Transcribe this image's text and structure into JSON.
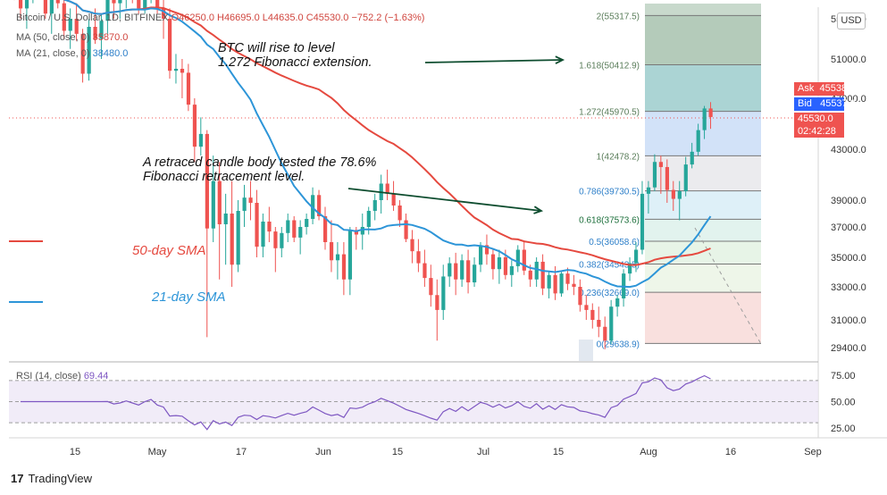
{
  "header": {
    "symbol": "Bitcoin / U.S. Dollar, 1D, BITFINEX",
    "ohlc": "O46250.0 H46695.0 L44635.0 C45530.0 −752.2 (−1.63%)",
    "ma50": "MA (50, close, 0)",
    "ma50_val": "35870.0",
    "ma21": "MA (21, close, 0)",
    "ma21_val": "38480.0"
  },
  "currency": "USD",
  "annotations": {
    "rise_line1": "BTC will rise to level",
    "rise_line2": "1.272 Fibonacci extension.",
    "retrace_line1": "A retraced candle body tested the 78.6%",
    "retrace_line2": "Fibonacci retracement level.",
    "sma50": "50-day SMA",
    "sma21": "21-day SMA"
  },
  "price_tags": {
    "ask": "Ask",
    "ask_price": "45538.0",
    "bid": "Bid",
    "bid_price": "45537.0",
    "last_price": "45530.0",
    "countdown": "02:42:28"
  },
  "brand": "TradingView",
  "colors": {
    "up": "#26a69a",
    "down": "#ef5350",
    "sma50": "#e5493f",
    "sma21": "#2d95d8",
    "rsi": "#7e57c2",
    "ask": "#ef5350",
    "bid": "#2962ff"
  },
  "chart_data": {
    "type": "candlestick",
    "price_axis": {
      "ticks": [
        55000,
        51000,
        47000,
        43000,
        39000,
        37000,
        35000,
        33000,
        31000,
        29400
      ],
      "labels": [
        "55000.0",
        "51000.0",
        "47000.0",
        "43000.0",
        "39000.0",
        "37000.0",
        "35000.0",
        "33000.0",
        "31000.0",
        "29400.0"
      ]
    },
    "time_axis": {
      "labels": [
        "15",
        "May",
        "17",
        "Jun",
        "15",
        "Jul",
        "15",
        "Aug",
        "16",
        "Sep"
      ]
    },
    "fibonacci": [
      {
        "label": "2(55317.5)",
        "level": 55317.5
      },
      {
        "label": "1.618(50412.9)",
        "level": 50412.9
      },
      {
        "label": "1.272(45970.5)",
        "level": 45970.5
      },
      {
        "label": "1(42478.2)",
        "level": 42478.2
      },
      {
        "label": "0.786(39730.5)",
        "level": 39730.5
      },
      {
        "label": "0.618(37573.6)",
        "level": 37573.6
      },
      {
        "label": "0.5(36058.6)",
        "level": 36058.6
      },
      {
        "label": "0.382(34543.5)",
        "level": 34543.5
      },
      {
        "label": "0.236(32669.0)",
        "level": 32669.0
      },
      {
        "label": "0(29638.9)",
        "level": 29638.9
      }
    ],
    "candles": [
      {
        "o": 59500,
        "h": 60400,
        "l": 56800,
        "c": 58000
      },
      {
        "o": 58000,
        "h": 59000,
        "l": 55000,
        "c": 56000
      },
      {
        "o": 56000,
        "h": 57500,
        "l": 54000,
        "c": 57000
      },
      {
        "o": 57000,
        "h": 60000,
        "l": 56500,
        "c": 59500
      },
      {
        "o": 59500,
        "h": 61000,
        "l": 57000,
        "c": 58200
      },
      {
        "o": 58200,
        "h": 59500,
        "l": 55000,
        "c": 55500
      },
      {
        "o": 55500,
        "h": 58000,
        "l": 53500,
        "c": 57200
      },
      {
        "o": 57200,
        "h": 59500,
        "l": 56000,
        "c": 56500
      },
      {
        "o": 56500,
        "h": 57000,
        "l": 53000,
        "c": 53800
      },
      {
        "o": 53800,
        "h": 56000,
        "l": 52000,
        "c": 55000
      },
      {
        "o": 55000,
        "h": 56500,
        "l": 52800,
        "c": 53500
      },
      {
        "o": 53500,
        "h": 54000,
        "l": 48600,
        "c": 49500
      },
      {
        "o": 49500,
        "h": 55000,
        "l": 48800,
        "c": 54200
      },
      {
        "o": 54200,
        "h": 56000,
        "l": 52500,
        "c": 53000
      },
      {
        "o": 53000,
        "h": 55500,
        "l": 51000,
        "c": 54800
      },
      {
        "o": 54800,
        "h": 58000,
        "l": 53500,
        "c": 57800
      },
      {
        "o": 57800,
        "h": 58500,
        "l": 55000,
        "c": 56500
      },
      {
        "o": 56500,
        "h": 57500,
        "l": 55000,
        "c": 57000
      },
      {
        "o": 57000,
        "h": 59000,
        "l": 56000,
        "c": 58000
      },
      {
        "o": 58000,
        "h": 59000,
        "l": 56500,
        "c": 57000
      },
      {
        "o": 57000,
        "h": 58000,
        "l": 55500,
        "c": 56000
      },
      {
        "o": 56000,
        "h": 58500,
        "l": 55500,
        "c": 57500
      },
      {
        "o": 57500,
        "h": 59000,
        "l": 56500,
        "c": 58500
      },
      {
        "o": 58500,
        "h": 59500,
        "l": 55500,
        "c": 56000
      },
      {
        "o": 56000,
        "h": 57000,
        "l": 53000,
        "c": 55000
      },
      {
        "o": 55000,
        "h": 56000,
        "l": 49000,
        "c": 49800
      },
      {
        "o": 49800,
        "h": 51500,
        "l": 48500,
        "c": 50000
      },
      {
        "o": 50000,
        "h": 51000,
        "l": 47000,
        "c": 49600
      },
      {
        "o": 49600,
        "h": 50500,
        "l": 46000,
        "c": 46500
      },
      {
        "o": 46500,
        "h": 47000,
        "l": 42000,
        "c": 43200
      },
      {
        "o": 43200,
        "h": 45500,
        "l": 42500,
        "c": 44200
      },
      {
        "o": 44200,
        "h": 44500,
        "l": 30000,
        "c": 36900
      },
      {
        "o": 36900,
        "h": 42500,
        "l": 36000,
        "c": 40500
      },
      {
        "o": 40500,
        "h": 42000,
        "l": 33500,
        "c": 37200
      },
      {
        "o": 37200,
        "h": 39500,
        "l": 34500,
        "c": 38000
      },
      {
        "o": 38000,
        "h": 40500,
        "l": 33000,
        "c": 34500
      },
      {
        "o": 34500,
        "h": 39000,
        "l": 34000,
        "c": 38200
      },
      {
        "o": 38200,
        "h": 40200,
        "l": 37000,
        "c": 39200
      },
      {
        "o": 39200,
        "h": 40500,
        "l": 37500,
        "c": 38800
      },
      {
        "o": 38800,
        "h": 39800,
        "l": 35000,
        "c": 35700
      },
      {
        "o": 35700,
        "h": 38000,
        "l": 35000,
        "c": 37400
      },
      {
        "o": 37400,
        "h": 38500,
        "l": 36000,
        "c": 36700
      },
      {
        "o": 36700,
        "h": 37000,
        "l": 34000,
        "c": 35600
      },
      {
        "o": 35600,
        "h": 37000,
        "l": 35000,
        "c": 36600
      },
      {
        "o": 36600,
        "h": 38000,
        "l": 36000,
        "c": 37500
      },
      {
        "o": 37500,
        "h": 37800,
        "l": 36000,
        "c": 36300
      },
      {
        "o": 36300,
        "h": 37500,
        "l": 35200,
        "c": 37000
      },
      {
        "o": 37000,
        "h": 38000,
        "l": 36500,
        "c": 37600
      },
      {
        "o": 37600,
        "h": 40000,
        "l": 37200,
        "c": 39400
      },
      {
        "o": 39400,
        "h": 39800,
        "l": 37500,
        "c": 37800
      },
      {
        "o": 37800,
        "h": 38500,
        "l": 35500,
        "c": 36000
      },
      {
        "o": 36000,
        "h": 37500,
        "l": 34000,
        "c": 34800
      },
      {
        "o": 34800,
        "h": 36000,
        "l": 33500,
        "c": 35200
      },
      {
        "o": 35200,
        "h": 36000,
        "l": 32500,
        "c": 33500
      },
      {
        "o": 33500,
        "h": 37000,
        "l": 32500,
        "c": 36800
      },
      {
        "o": 36800,
        "h": 37000,
        "l": 35500,
        "c": 36500
      },
      {
        "o": 36500,
        "h": 38000,
        "l": 35500,
        "c": 37000
      },
      {
        "o": 37000,
        "h": 38500,
        "l": 36500,
        "c": 38200
      },
      {
        "o": 38200,
        "h": 39500,
        "l": 37500,
        "c": 39000
      },
      {
        "o": 39000,
        "h": 41000,
        "l": 38000,
        "c": 40300
      },
      {
        "o": 40300,
        "h": 41400,
        "l": 39000,
        "c": 39500
      },
      {
        "o": 39500,
        "h": 40500,
        "l": 38200,
        "c": 38600
      },
      {
        "o": 38600,
        "h": 39000,
        "l": 37000,
        "c": 37500
      },
      {
        "o": 37500,
        "h": 38000,
        "l": 36000,
        "c": 36200
      },
      {
        "o": 36200,
        "h": 36800,
        "l": 34600,
        "c": 35400
      },
      {
        "o": 35400,
        "h": 36200,
        "l": 34000,
        "c": 34600
      },
      {
        "o": 34600,
        "h": 35500,
        "l": 33000,
        "c": 33600
      },
      {
        "o": 33600,
        "h": 34500,
        "l": 31800,
        "c": 32500
      },
      {
        "o": 32500,
        "h": 33500,
        "l": 29800,
        "c": 31600
      },
      {
        "o": 31600,
        "h": 34500,
        "l": 31000,
        "c": 33700
      },
      {
        "o": 33700,
        "h": 35000,
        "l": 33000,
        "c": 34600
      },
      {
        "o": 34600,
        "h": 35300,
        "l": 32500,
        "c": 33500
      },
      {
        "o": 33500,
        "h": 35200,
        "l": 33000,
        "c": 34800
      },
      {
        "o": 34800,
        "h": 35500,
        "l": 32600,
        "c": 33300
      },
      {
        "o": 33300,
        "h": 35000,
        "l": 33000,
        "c": 34500
      },
      {
        "o": 34500,
        "h": 36000,
        "l": 34000,
        "c": 35800
      },
      {
        "o": 35800,
        "h": 36500,
        "l": 34500,
        "c": 35200
      },
      {
        "o": 35200,
        "h": 35600,
        "l": 33500,
        "c": 34200
      },
      {
        "o": 34200,
        "h": 35500,
        "l": 33200,
        "c": 35000
      },
      {
        "o": 35000,
        "h": 35500,
        "l": 33500,
        "c": 33800
      },
      {
        "o": 33800,
        "h": 34800,
        "l": 33000,
        "c": 34400
      },
      {
        "o": 34400,
        "h": 35800,
        "l": 34000,
        "c": 35500
      },
      {
        "o": 35500,
        "h": 36000,
        "l": 33800,
        "c": 34100
      },
      {
        "o": 34100,
        "h": 34500,
        "l": 33000,
        "c": 33500
      },
      {
        "o": 33500,
        "h": 35000,
        "l": 33000,
        "c": 34700
      },
      {
        "o": 34700,
        "h": 35200,
        "l": 32500,
        "c": 32900
      },
      {
        "o": 32900,
        "h": 34000,
        "l": 32300,
        "c": 33800
      },
      {
        "o": 33800,
        "h": 34400,
        "l": 32200,
        "c": 32600
      },
      {
        "o": 32600,
        "h": 34000,
        "l": 32400,
        "c": 33900
      },
      {
        "o": 33900,
        "h": 34300,
        "l": 32800,
        "c": 33200
      },
      {
        "o": 33200,
        "h": 33800,
        "l": 32500,
        "c": 33000
      },
      {
        "o": 33000,
        "h": 33500,
        "l": 31500,
        "c": 31900
      },
      {
        "o": 31900,
        "h": 32500,
        "l": 31000,
        "c": 31600
      },
      {
        "o": 31600,
        "h": 32000,
        "l": 30500,
        "c": 31000
      },
      {
        "o": 31000,
        "h": 31800,
        "l": 30000,
        "c": 30600
      },
      {
        "o": 30600,
        "h": 31200,
        "l": 29300,
        "c": 29800
      },
      {
        "o": 29800,
        "h": 32200,
        "l": 29600,
        "c": 31800
      },
      {
        "o": 31800,
        "h": 32500,
        "l": 31200,
        "c": 32300
      },
      {
        "o": 32300,
        "h": 34200,
        "l": 31800,
        "c": 33900
      },
      {
        "o": 33900,
        "h": 35000,
        "l": 33400,
        "c": 34600
      },
      {
        "o": 34600,
        "h": 36000,
        "l": 34000,
        "c": 35500
      },
      {
        "o": 35500,
        "h": 40500,
        "l": 35200,
        "c": 39500
      },
      {
        "o": 39500,
        "h": 40500,
        "l": 38000,
        "c": 40000
      },
      {
        "o": 40000,
        "h": 42600,
        "l": 39700,
        "c": 42000
      },
      {
        "o": 42000,
        "h": 42500,
        "l": 39500,
        "c": 41600
      },
      {
        "o": 41600,
        "h": 42200,
        "l": 38800,
        "c": 39800
      },
      {
        "o": 39800,
        "h": 40500,
        "l": 38200,
        "c": 39100
      },
      {
        "o": 39100,
        "h": 40500,
        "l": 37500,
        "c": 39700
      },
      {
        "o": 39700,
        "h": 42400,
        "l": 39300,
        "c": 41800
      },
      {
        "o": 41800,
        "h": 43500,
        "l": 41500,
        "c": 42800
      },
      {
        "o": 42800,
        "h": 45000,
        "l": 42500,
        "c": 44500
      },
      {
        "o": 44500,
        "h": 46400,
        "l": 43800,
        "c": 46200
      },
      {
        "o": 46200,
        "h": 46700,
        "l": 44600,
        "c": 45530
      }
    ],
    "rsi": {
      "label": "RSI (14, close)",
      "value": "69.44",
      "ticks": [
        75,
        50,
        25
      ],
      "tick_labels": [
        "75.00",
        "50.00",
        "25.00"
      ]
    }
  }
}
